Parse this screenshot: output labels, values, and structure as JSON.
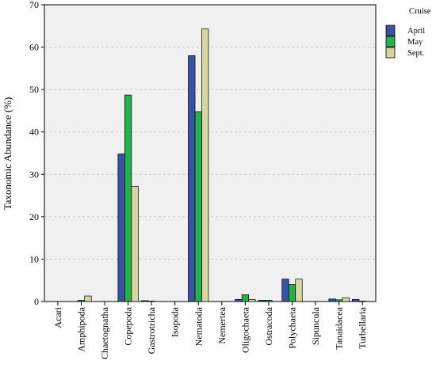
{
  "chart_data": {
    "type": "bar",
    "title": "",
    "xlabel": "",
    "ylabel": "Taxonomic Abundance (%)",
    "ylim": [
      0,
      70
    ],
    "yticks": [
      0,
      10,
      20,
      30,
      40,
      50,
      60,
      70
    ],
    "grid": "horizontal dashed",
    "legend": {
      "title": "Cruise",
      "placement": "right"
    },
    "categories": [
      "Acari",
      "Amphipoda",
      "Chaetognatha",
      "Copepoda",
      "Gastrotricha",
      "Isopoda",
      "Nematoda",
      "Nemertea",
      "Oligochaeta",
      "Ostracoda",
      "Polychaeta",
      "Sipuncula",
      "Tanaidacea",
      "Turbellaria"
    ],
    "series": [
      {
        "name": "April",
        "color": "#3953a4",
        "values": [
          0.0,
          0.0,
          0.0,
          34.8,
          0.2,
          0.0,
          58.0,
          0.0,
          0.5,
          0.3,
          5.3,
          0.0,
          0.6,
          0.5
        ]
      },
      {
        "name": "May",
        "color": "#22b14c",
        "values": [
          0.0,
          0.3,
          0.0,
          48.7,
          0.1,
          0.0,
          44.8,
          0.0,
          1.6,
          0.3,
          4.0,
          0.0,
          0.4,
          0.1
        ]
      },
      {
        "name": "Sept.",
        "color": "#d9d5a0",
        "values": [
          0.0,
          1.3,
          0.0,
          27.2,
          0.0,
          0.0,
          64.3,
          0.0,
          0.5,
          0.0,
          5.3,
          0.0,
          0.9,
          0.0
        ]
      }
    ]
  }
}
